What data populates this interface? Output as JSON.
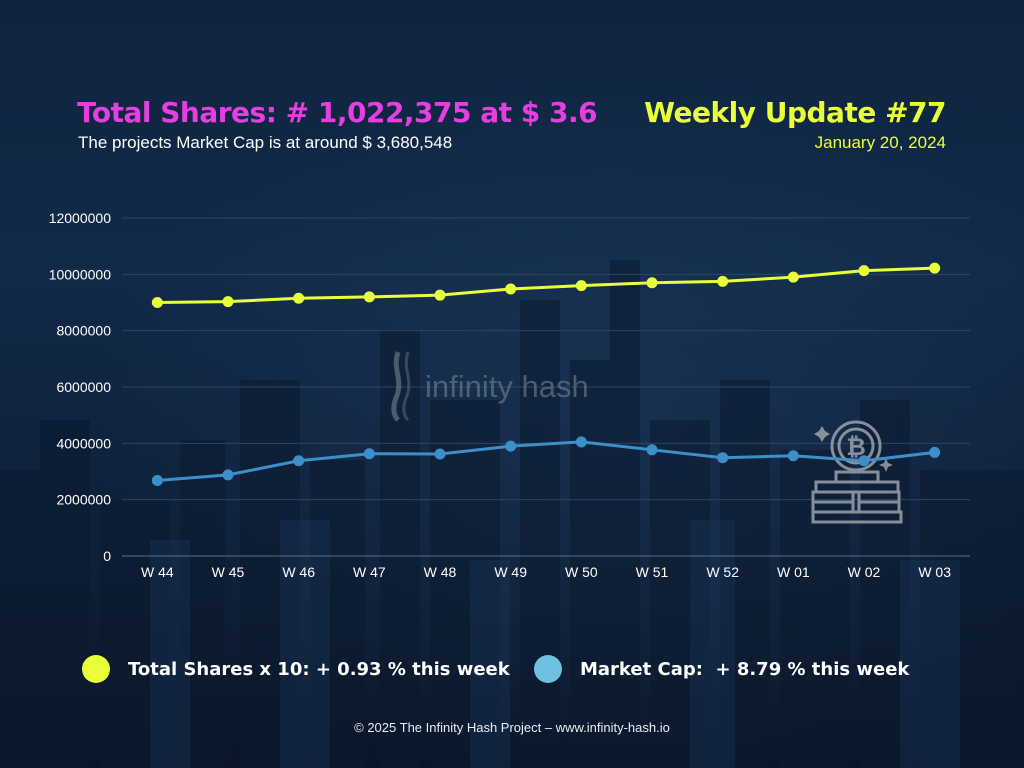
{
  "header": {
    "title": "Total Shares: # 1,022,375 at $ 3.6",
    "subtitle": "The projects Market Cap is at around $ 3,680,548",
    "update_title": "Weekly Update #77",
    "update_date": "January 20, 2024"
  },
  "watermark": {
    "brand": "infinity hash",
    "icon": "bitcoin-stack-icon"
  },
  "legend": [
    {
      "label": "Total Shares x 10: + 0.93 % this week",
      "color": "#e9ff3a"
    },
    {
      "label": "Market Cap:  + 8.79 % this week",
      "color": "#6fc1e0"
    }
  ],
  "footer": "© 2025 The Infinity Hash Project – www.infinity-hash.io",
  "colors": {
    "title_magenta": "#e63ee0",
    "accent_yellow": "#e9ff3a",
    "series_blue": "#3d8fc9"
  },
  "chart_data": {
    "type": "line",
    "title": "",
    "xlabel": "",
    "ylabel": "",
    "categories": [
      "W 44",
      "W 45",
      "W 46",
      "W 47",
      "W 48",
      "W 49",
      "W 50",
      "W 51",
      "W 52",
      "W 01",
      "W 02",
      "W 03"
    ],
    "ylim": [
      0,
      12000000
    ],
    "yticks": [
      0,
      2000000,
      4000000,
      6000000,
      8000000,
      10000000,
      12000000
    ],
    "grid": true,
    "legend_position": "bottom",
    "series": [
      {
        "name": "Total Shares x 10",
        "color": "#e9ff3a",
        "values": [
          9000000,
          9030000,
          9150000,
          9200000,
          9260000,
          9480000,
          9600000,
          9700000,
          9750000,
          9900000,
          10130000,
          10220000
        ]
      },
      {
        "name": "Market Cap",
        "color": "#3d8fc9",
        "values": [
          2680000,
          2880000,
          3380000,
          3630000,
          3620000,
          3900000,
          4050000,
          3770000,
          3490000,
          3560000,
          3380000,
          3680000
        ]
      }
    ]
  }
}
